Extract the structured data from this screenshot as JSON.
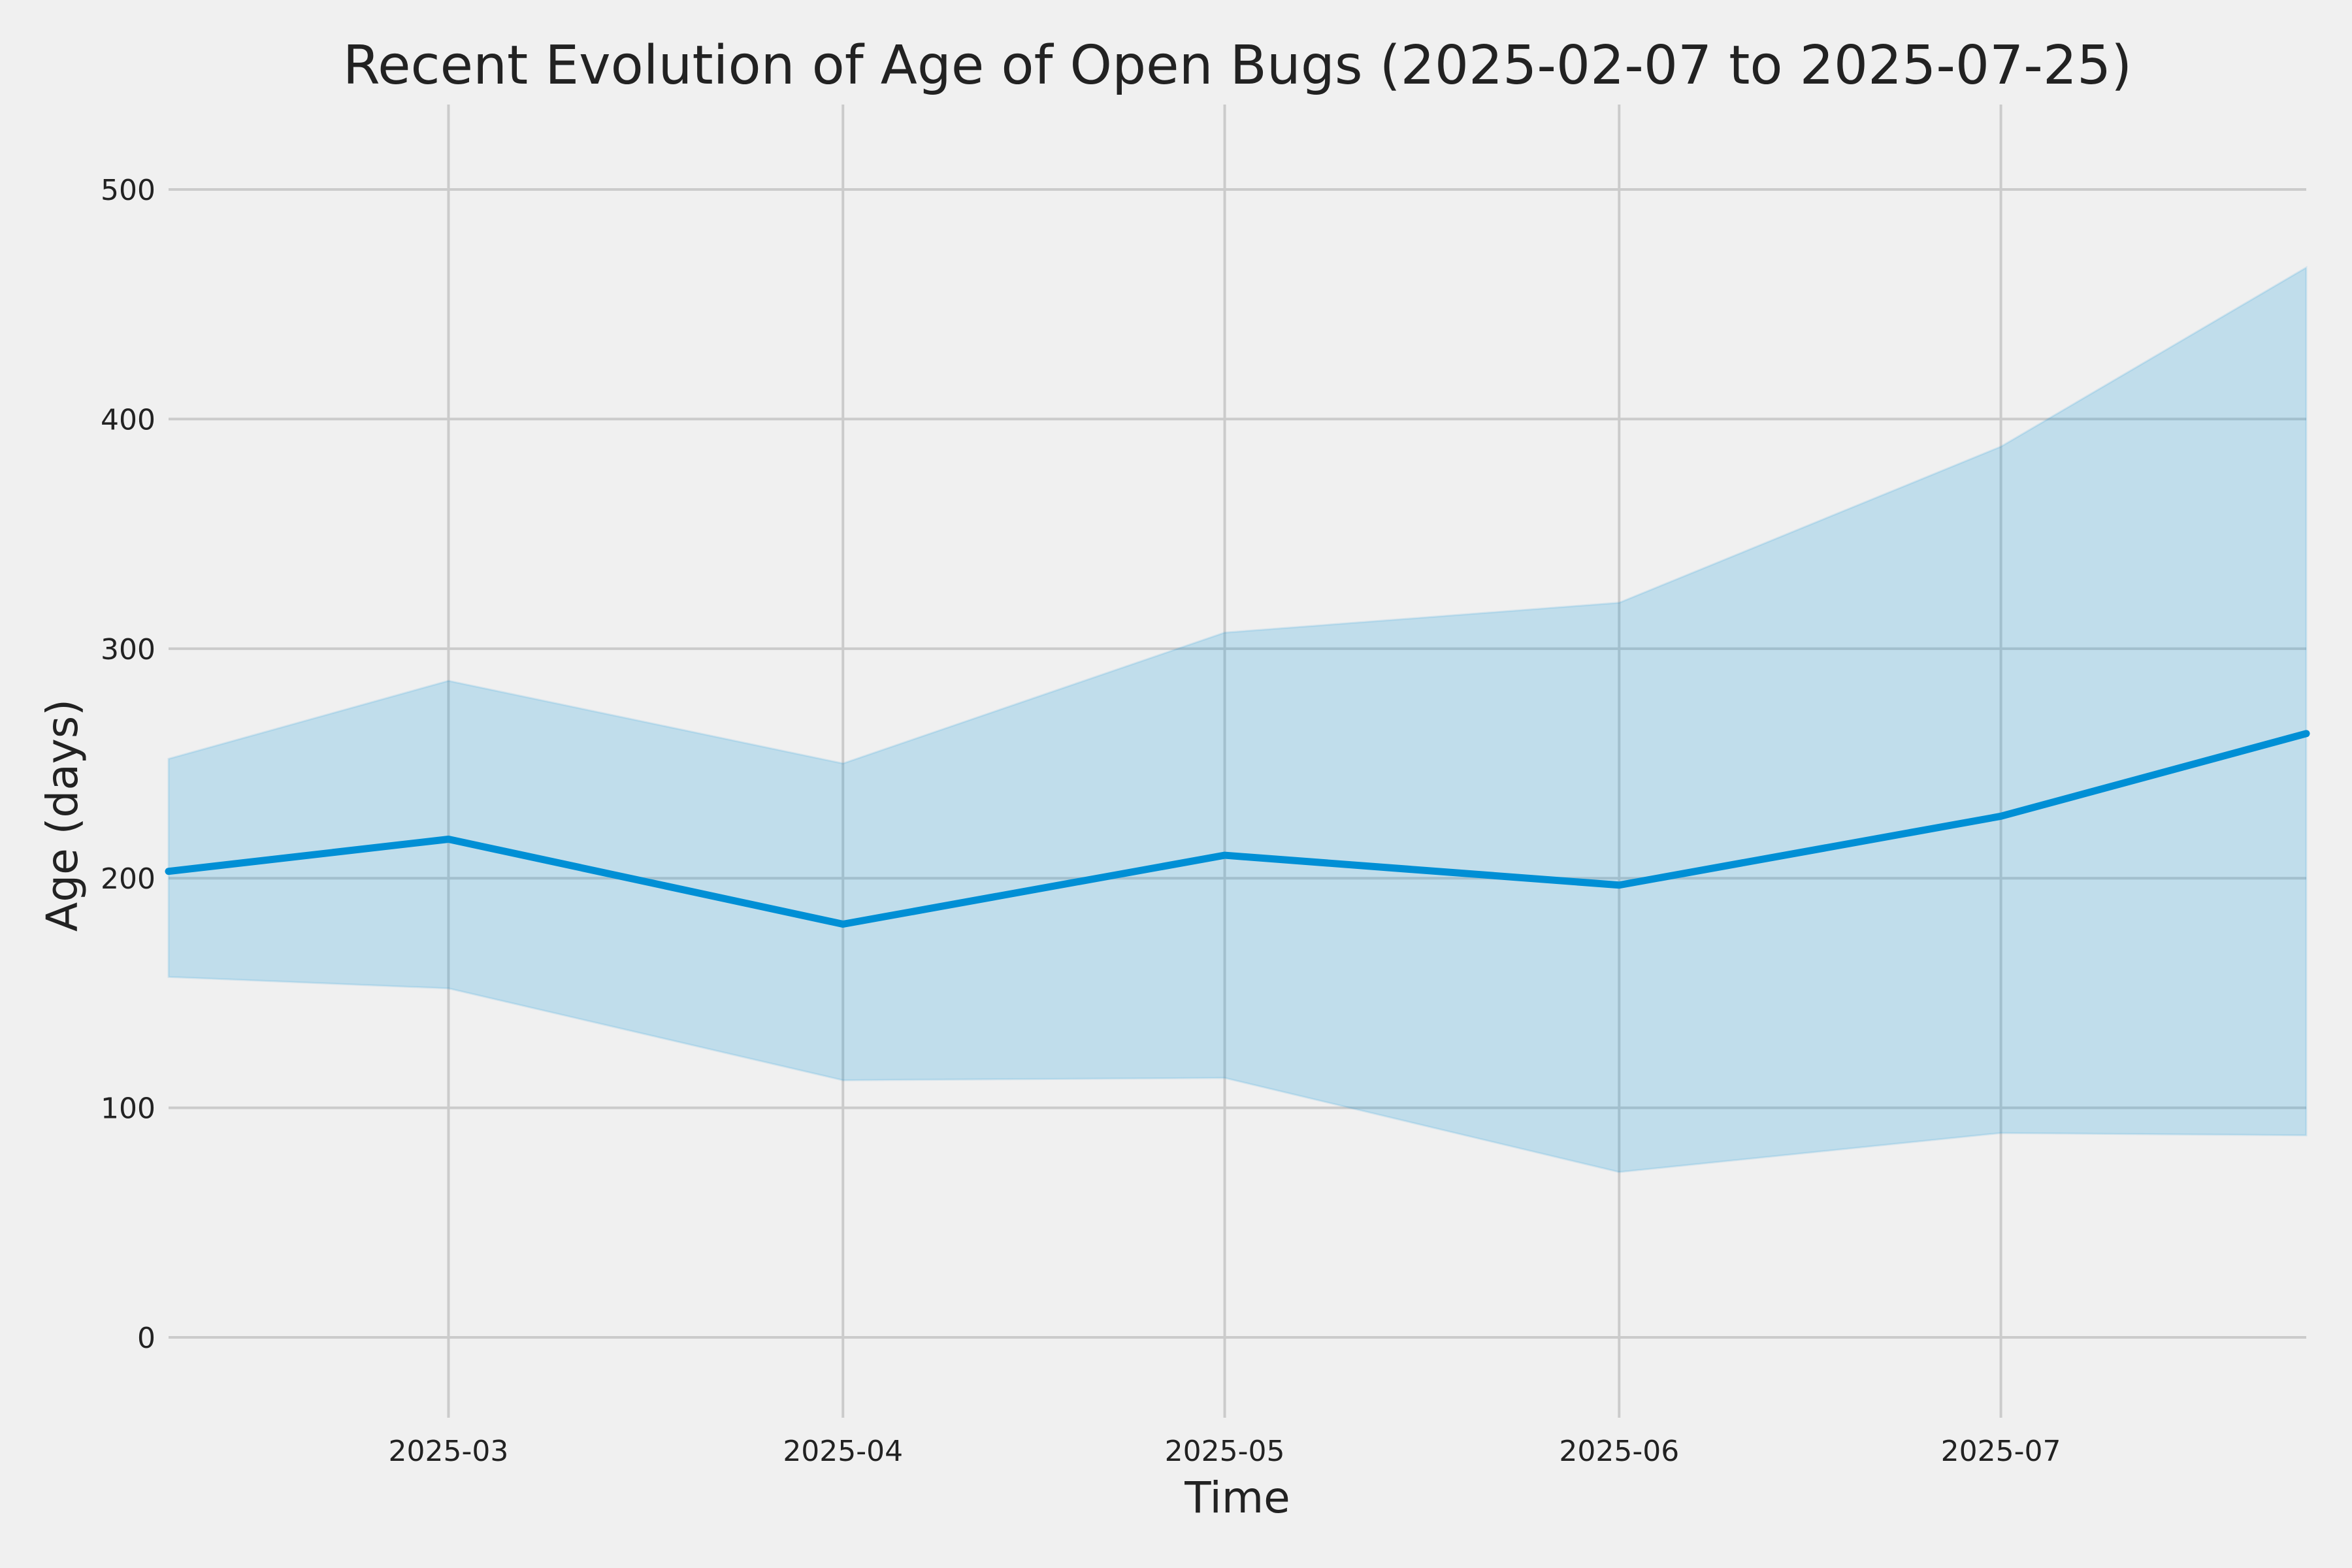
{
  "chart_data": {
    "type": "line",
    "title": "Recent Evolution of Age of Open Bugs (2025-02-07 to 2025-07-25)",
    "xlabel": "Time",
    "ylabel": "Age (days)",
    "x": [
      "2025-02-07",
      "2025-03-01",
      "2025-04-01",
      "2025-05-01",
      "2025-06-01",
      "2025-07-01",
      "2025-07-25"
    ],
    "series": [
      {
        "values": [
          203,
          217,
          180,
          210,
          197,
          227,
          263
        ],
        "band_lower": [
          157,
          152,
          112,
          113,
          72,
          89,
          88
        ],
        "band_upper": [
          252,
          286,
          250,
          307,
          320,
          388,
          466
        ]
      }
    ],
    "xlim": [
      "2025-02-07",
      "2025-07-25"
    ],
    "ylim": [
      -35,
      537
    ],
    "xticks": [
      {
        "date": "2025-03-01",
        "label": "2025-03"
      },
      {
        "date": "2025-04-01",
        "label": "2025-04"
      },
      {
        "date": "2025-05-01",
        "label": "2025-05"
      },
      {
        "date": "2025-06-01",
        "label": "2025-06"
      },
      {
        "date": "2025-07-01",
        "label": "2025-07"
      }
    ],
    "yticks": [
      0,
      100,
      200,
      300,
      400,
      500
    ],
    "grid": true,
    "colors": {
      "line": "#008fd5",
      "band_fill": "#008fd5",
      "band_opacity": 0.2,
      "background": "#f0f0f0",
      "grid": "#cbcbcb"
    }
  }
}
